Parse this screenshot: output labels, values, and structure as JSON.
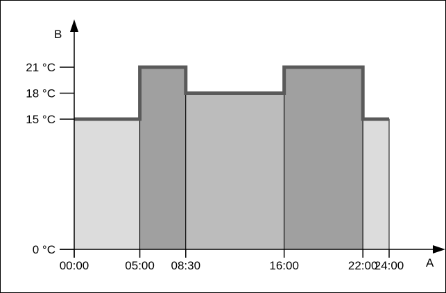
{
  "chart_data": {
    "type": "area",
    "xlabel": "A",
    "ylabel": "B",
    "x_ticks": [
      {
        "value": 0,
        "label": "00:00"
      },
      {
        "value": 5,
        "label": "05:00"
      },
      {
        "value": 8.5,
        "label": "08:30"
      },
      {
        "value": 16,
        "label": "16:00"
      },
      {
        "value": 22,
        "label": "22:00"
      },
      {
        "value": 24,
        "label": "24:00"
      }
    ],
    "y_ticks": [
      {
        "value": 0,
        "label": "0 °C"
      },
      {
        "value": 15,
        "label": "15 °C"
      },
      {
        "value": 18,
        "label": "18 °C"
      },
      {
        "value": 21,
        "label": "21 °C"
      }
    ],
    "segments": [
      {
        "start": 0,
        "end": 5,
        "value": 15,
        "fill": "#dcdcdc"
      },
      {
        "start": 5,
        "end": 8.5,
        "value": 21,
        "fill": "#a0a0a0"
      },
      {
        "start": 8.5,
        "end": 16,
        "value": 18,
        "fill": "#bcbcbc"
      },
      {
        "start": 16,
        "end": 22,
        "value": 21,
        "fill": "#a0a0a0"
      },
      {
        "start": 22,
        "end": 24,
        "value": 15,
        "fill": "#dcdcdc"
      }
    ],
    "line_color": "#5a5a5a",
    "grid": false
  }
}
